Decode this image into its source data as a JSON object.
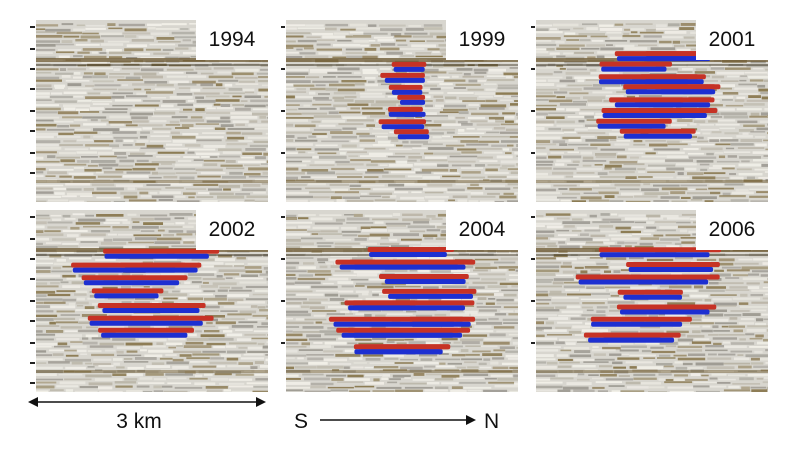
{
  "panels": [
    {
      "year": "1994"
    },
    {
      "year": "1999"
    },
    {
      "year": "2001"
    },
    {
      "year": "2002"
    },
    {
      "year": "2004"
    },
    {
      "year": "2006"
    }
  ],
  "scale": {
    "label": "3 km"
  },
  "orientation": {
    "start": "S",
    "end": "N"
  },
  "colors": {
    "positive": "#c63225",
    "negative": "#1d2fd1",
    "background": "#d8d6cf",
    "reflector": "#8b7a52"
  }
}
